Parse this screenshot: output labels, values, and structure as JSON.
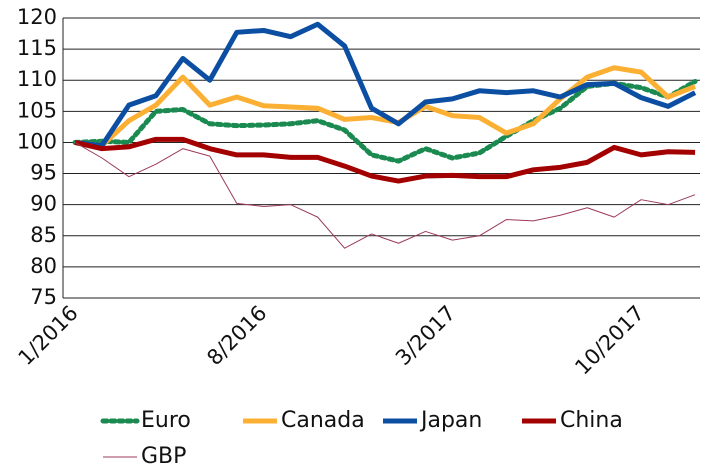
{
  "chart_data": {
    "type": "line",
    "categories": [
      "1/2016",
      null,
      null,
      null,
      null,
      null,
      null,
      "8/2016",
      null,
      null,
      null,
      null,
      null,
      null,
      "3/2017",
      null,
      null,
      null,
      null,
      null,
      null,
      "10/2017",
      null,
      null
    ],
    "series": [
      {
        "name": "Euro",
        "color": "#1a8a50",
        "style": "dotted",
        "values": [
          100,
          100.2,
          100,
          105,
          105.3,
          103,
          102.7,
          102.8,
          103,
          103.5,
          102,
          98,
          97,
          99,
          97.5,
          98.3,
          101,
          103.5,
          105.5,
          109,
          109.5,
          108.8,
          107.3,
          109.8
        ]
      },
      {
        "name": "Canada",
        "color": "#fbb034",
        "style": "solid",
        "values": [
          100,
          99.5,
          103.5,
          106,
          110.5,
          106,
          107.3,
          105.9,
          105.7,
          105.5,
          103.7,
          104,
          103.2,
          105.8,
          104.3,
          104,
          101.5,
          103,
          107,
          110.5,
          112,
          111.3,
          107.3,
          109
        ]
      },
      {
        "name": "Japan",
        "color": "#0b4ea2",
        "style": "solid",
        "values": [
          100,
          99.5,
          106,
          107.5,
          113.5,
          110,
          117.7,
          118,
          117,
          119,
          115.5,
          105.5,
          103,
          106.5,
          107,
          108.3,
          108,
          108.3,
          107.3,
          109.3,
          109.5,
          107.2,
          105.8,
          108
        ]
      },
      {
        "name": "China",
        "color": "#a30000",
        "style": "solid",
        "values": [
          100,
          99,
          99.3,
          100.5,
          100.5,
          99,
          98,
          98,
          97.6,
          97.6,
          96.2,
          94.6,
          93.8,
          94.6,
          94.7,
          94.5,
          94.5,
          95.6,
          96,
          96.8,
          99.2,
          98,
          98.5,
          98.4
        ]
      },
      {
        "name": "GBP",
        "color": "#9c3a5a",
        "style": "thin",
        "values": [
          100,
          97.5,
          94.5,
          96.5,
          99,
          97.8,
          90.2,
          89.7,
          90,
          88,
          83,
          85.3,
          83.8,
          85.7,
          84.3,
          85,
          87.6,
          87.4,
          88.3,
          89.5,
          88,
          90.8,
          90,
          91.6
        ]
      }
    ],
    "ylim": [
      75,
      120
    ],
    "yticks": [
      75,
      80,
      85,
      90,
      95,
      100,
      105,
      110,
      115,
      120
    ],
    "grid": true
  }
}
